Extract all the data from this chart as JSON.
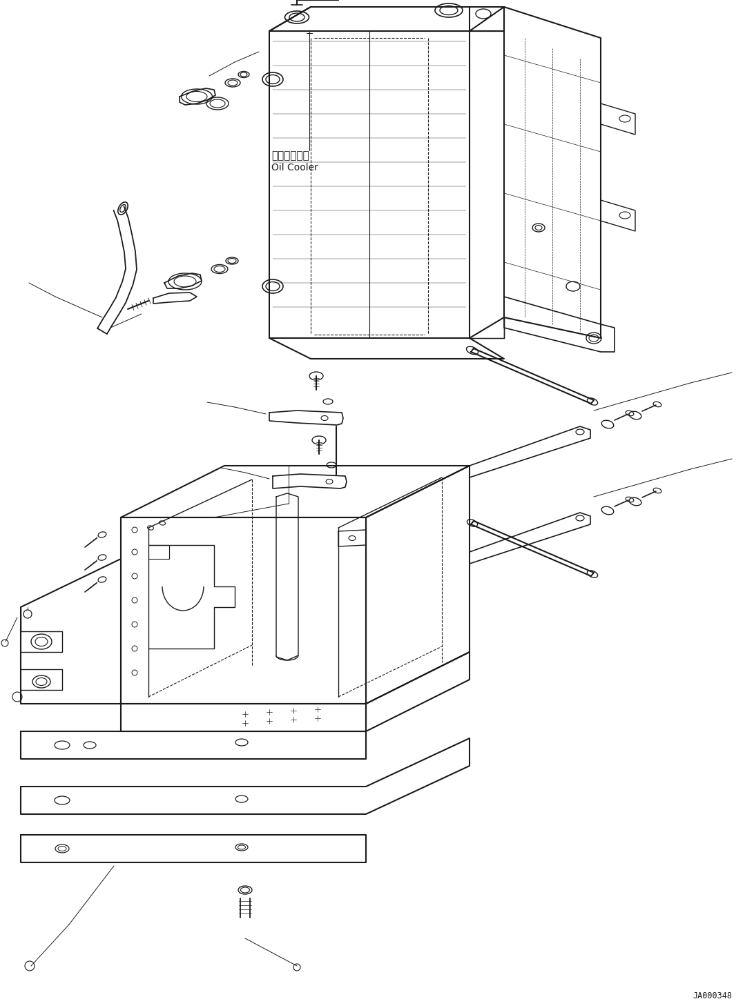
{
  "background_color": "#ffffff",
  "line_color": "#1a1a1a",
  "fig_width": 10.92,
  "fig_height": 14.61,
  "dpi": 100,
  "label_oil_cooler_jp": "オイルクーラ",
  "label_oil_cooler_en": "Oil Cooler",
  "watermark": "JA000348"
}
